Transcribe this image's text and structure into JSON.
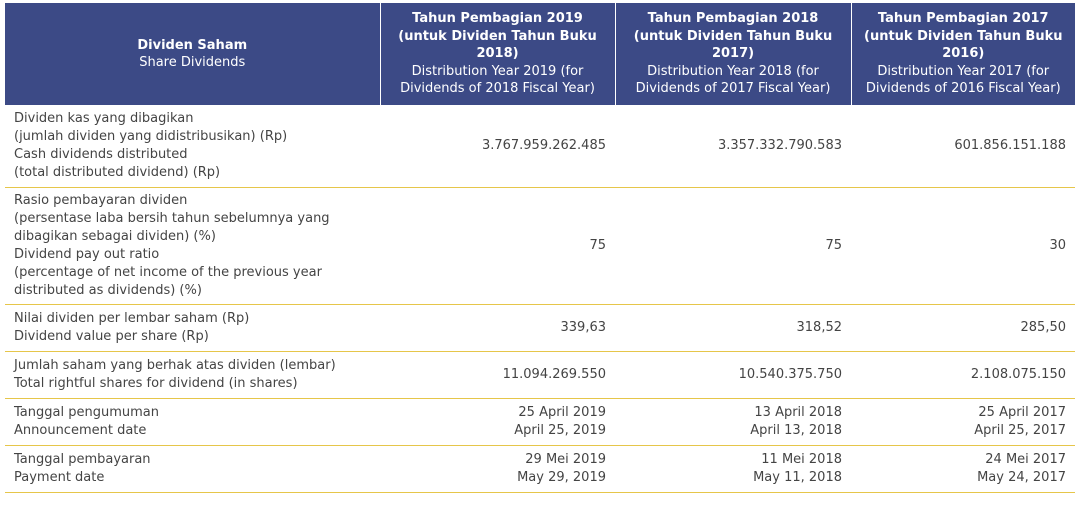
{
  "header": {
    "col0": {
      "title": "Dividen Saham",
      "subtitle": "Share Dividends"
    },
    "col1": {
      "title": "Tahun Pembagian 2019 (untuk Dividen Tahun Buku 2018)",
      "subtitle": "Distribution Year 2019 (for Dividends of 2018 Fiscal Year)"
    },
    "col2": {
      "title": "Tahun Pembagian 2018 (untuk Dividen Tahun Buku 2017)",
      "subtitle": "Distribution Year 2018 (for Dividends of 2017 Fiscal Year)"
    },
    "col3": {
      "title": "Tahun Pembagian 2017 (untuk Dividen Tahun Buku 2016)",
      "subtitle": "Distribution Year 2017 (for Dividends of 2016 Fiscal Year)"
    }
  },
  "rows": [
    {
      "label": [
        "Dividen kas yang dibagikan",
        "(jumlah dividen yang didistribusikan) (Rp)",
        "Cash dividends distributed",
        "(total distributed dividend) (Rp)"
      ],
      "values": [
        [
          "3.767.959.262.485"
        ],
        [
          "3.357.332.790.583"
        ],
        [
          "601.856.151.188"
        ]
      ]
    },
    {
      "label": [
        "Rasio pembayaran dividen",
        "(persentase laba bersih tahun sebelumnya yang",
        "dibagikan sebagai dividen) (%)",
        "Dividend pay out ratio",
        "(percentage of net income of the previous year",
        "distributed as dividends) (%)"
      ],
      "values": [
        [
          "75"
        ],
        [
          "75"
        ],
        [
          "30"
        ]
      ]
    },
    {
      "label": [
        "Nilai dividen per lembar saham (Rp)",
        "Dividend value per share (Rp)"
      ],
      "values": [
        [
          "339,63"
        ],
        [
          "318,52"
        ],
        [
          "285,50"
        ]
      ]
    },
    {
      "label": [
        "Jumlah saham yang berhak atas dividen (lembar)",
        "Total rightful shares for dividend (in shares)"
      ],
      "values": [
        [
          "11.094.269.550"
        ],
        [
          "10.540.375.750"
        ],
        [
          "2.108.075.150"
        ]
      ]
    },
    {
      "label": [
        "Tanggal pengumuman",
        "Announcement date"
      ],
      "values": [
        [
          "25 April 2019",
          "April 25, 2019"
        ],
        [
          "13 April 2018",
          "April 13, 2018"
        ],
        [
          "25 April 2017",
          "April 25, 2017"
        ]
      ]
    },
    {
      "label": [
        "Tanggal pembayaran",
        "Payment date"
      ],
      "values": [
        [
          "29 Mei 2019",
          "May 29, 2019"
        ],
        [
          "11 Mei 2018",
          "May 11, 2018"
        ],
        [
          "24 Mei 2017",
          "May 24, 2017"
        ]
      ]
    }
  ],
  "colors": {
    "header_bg": "#3c4a86",
    "row_border": "#e6c64a"
  }
}
